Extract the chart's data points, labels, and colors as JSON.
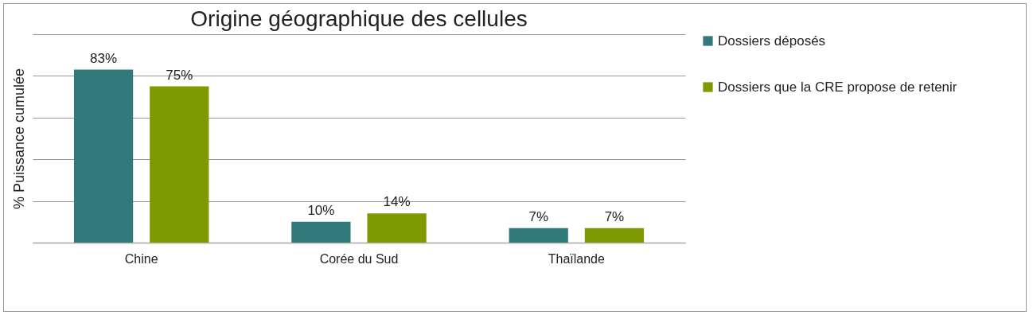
{
  "chart_data": {
    "type": "bar",
    "title": "Origine géographique des cellules",
    "ylabel": "% Puissance cumulée",
    "categories": [
      "Chine",
      "Corée du Sud",
      "Thaïlande"
    ],
    "series": [
      {
        "name": "Dossiers déposés",
        "color": "#31797a",
        "values": [
          83,
          10,
          7
        ],
        "value_labels": [
          "83%",
          "10%",
          "7%"
        ]
      },
      {
        "name": "Dossiers que la CRE propose de retenir",
        "color": "#7f9a00",
        "values": [
          75,
          14,
          7
        ],
        "value_labels": [
          "75%",
          "14%",
          "7%"
        ]
      }
    ],
    "ylim": [
      0,
      100
    ],
    "yticks": [
      {
        "value": 0,
        "label": null
      },
      {
        "value": 20,
        "label": null
      },
      {
        "value": 40,
        "label": null
      },
      {
        "value": 60,
        "label": null
      },
      {
        "value": 80,
        "label": null
      },
      {
        "value": 100,
        "label": null
      }
    ],
    "grid": true,
    "legend": "right",
    "tick_labels": "x"
  }
}
